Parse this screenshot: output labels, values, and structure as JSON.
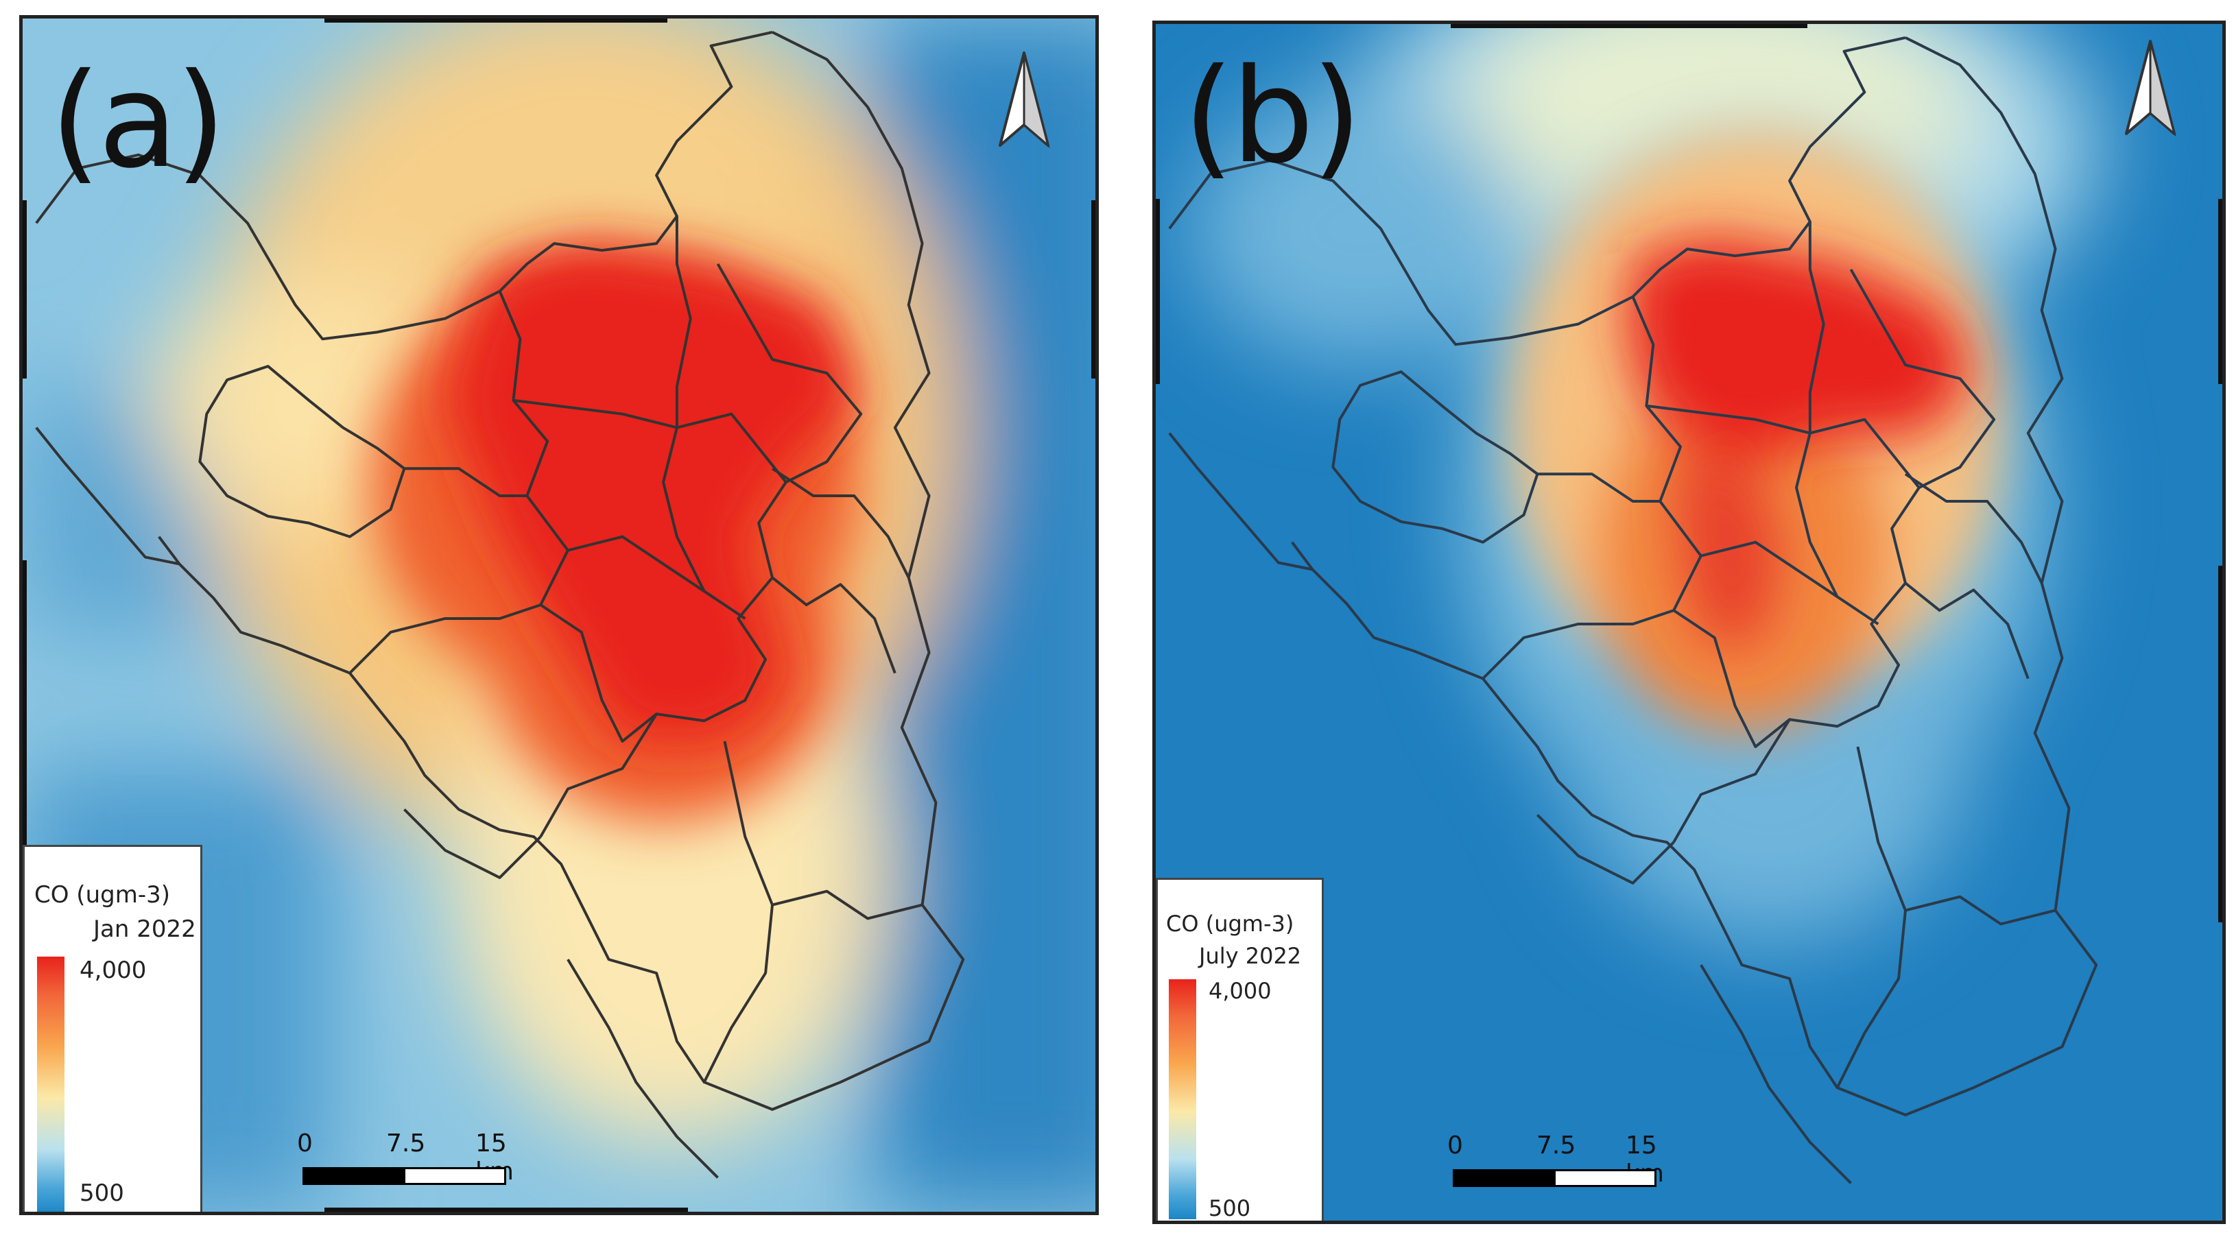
{
  "panels": [
    {
      "label": "(a)",
      "legend": {
        "title": "CO (ugm-3)",
        "period": "Jan 2022",
        "max": "4,000",
        "min": "500"
      },
      "scale": {
        "ticks": [
          "0",
          "7.5",
          "15 km"
        ]
      }
    },
    {
      "label": "(b)",
      "legend": {
        "title": "CO (ugm-3)",
        "period": "July 2022",
        "max": "4,000",
        "min": "500"
      },
      "scale": {
        "ticks": [
          "0",
          "7.5",
          "15 km"
        ]
      }
    }
  ],
  "colors": {
    "high": "#e8231d",
    "mid_high": "#f7a04d",
    "mid": "#fbeaa8",
    "low_mid": "#a6d6ea",
    "low": "#1b86c6"
  },
  "icons": [
    "north-arrow-icon"
  ]
}
